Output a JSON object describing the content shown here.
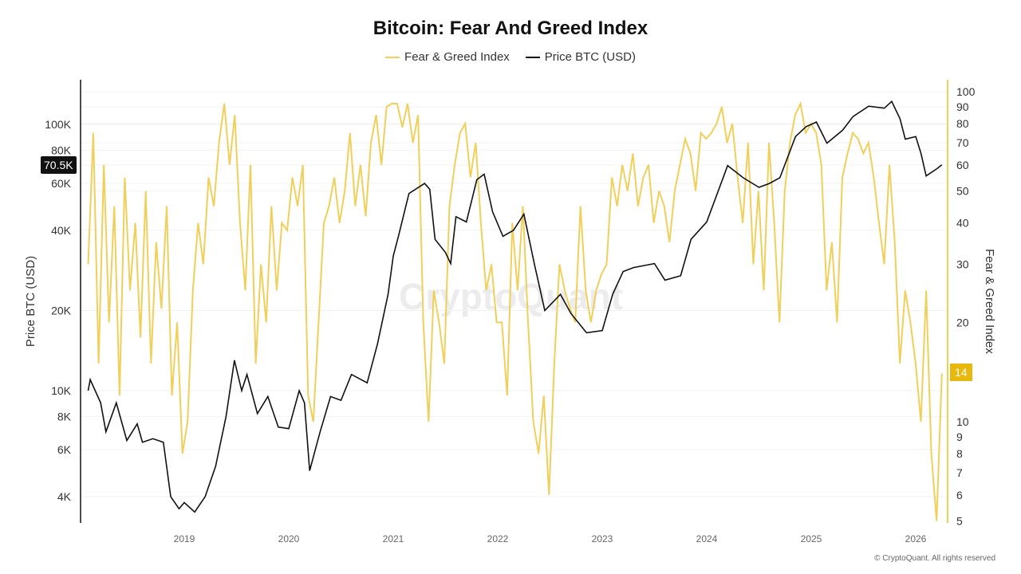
{
  "chart_data": {
    "type": "line",
    "title": "Bitcoin: Fear And Greed Index",
    "legend": [
      "Fear & Greed Index",
      "Price BTC (USD)"
    ],
    "legend_position": "top-center",
    "ylabel_left": "Price BTC (USD)",
    "ylabel_right": "Fear & Greed Index",
    "y_left_scale": "log",
    "y_left_range": [
      3500,
      180000
    ],
    "y_right_scale": "log",
    "y_right_range": [
      5,
      115
    ],
    "x_range": [
      2018.0,
      2026.3
    ],
    "x_ticks": [
      "2019",
      "2020",
      "2021",
      "2022",
      "2023",
      "2024",
      "2025",
      "2026"
    ],
    "y_left_ticks": [
      {
        "v": 4000,
        "l": "4K"
      },
      {
        "v": 6000,
        "l": "6K"
      },
      {
        "v": 8000,
        "l": "8K"
      },
      {
        "v": 10000,
        "l": "10K"
      },
      {
        "v": 20000,
        "l": "20K"
      },
      {
        "v": 40000,
        "l": "40K"
      },
      {
        "v": 60000,
        "l": "60K"
      },
      {
        "v": 80000,
        "l": "80K"
      },
      {
        "v": 100000,
        "l": "100K"
      }
    ],
    "y_right_ticks": [
      5,
      6,
      7,
      8,
      9,
      10,
      20,
      30,
      40,
      50,
      60,
      70,
      80,
      90,
      100
    ],
    "current_price_label": "70.5K",
    "current_index_label": "14",
    "colors": {
      "fg": "#f0cf5a",
      "price": "#111111",
      "badge_price": "#111111",
      "badge_fg": "#e8b90c"
    },
    "price_series": {
      "name": "Price BTC (USD)",
      "x": [
        2018.08,
        2018.1,
        2018.2,
        2018.25,
        2018.35,
        2018.45,
        2018.55,
        2018.6,
        2018.7,
        2018.8,
        2018.87,
        2018.95,
        2019.0,
        2019.1,
        2019.2,
        2019.3,
        2019.4,
        2019.48,
        2019.55,
        2019.6,
        2019.7,
        2019.8,
        2019.9,
        2020.0,
        2020.1,
        2020.15,
        2020.2,
        2020.3,
        2020.4,
        2020.5,
        2020.6,
        2020.75,
        2020.85,
        2020.95,
        2021.0,
        2021.05,
        2021.15,
        2021.3,
        2021.35,
        2021.4,
        2021.5,
        2021.55,
        2021.6,
        2021.7,
        2021.8,
        2021.87,
        2021.95,
        2022.05,
        2022.15,
        2022.25,
        2022.35,
        2022.45,
        2022.6,
        2022.7,
        2022.85,
        2023.0,
        2023.1,
        2023.2,
        2023.3,
        2023.5,
        2023.6,
        2023.75,
        2023.85,
        2024.0,
        2024.15,
        2024.2,
        2024.35,
        2024.5,
        2024.6,
        2024.7,
        2024.85,
        2024.95,
        2025.05,
        2025.15,
        2025.3,
        2025.4,
        2025.55,
        2025.7,
        2025.77,
        2025.85,
        2025.9,
        2026.0,
        2026.05,
        2026.1,
        2026.2,
        2026.25
      ],
      "y": [
        10000,
        11000,
        9000,
        7000,
        9000,
        6500,
        7500,
        6400,
        6600,
        6400,
        4000,
        3600,
        3800,
        3500,
        4000,
        5200,
        8000,
        13000,
        10000,
        11500,
        8200,
        9500,
        7300,
        7200,
        10000,
        9000,
        5000,
        7000,
        9500,
        9200,
        11500,
        10700,
        15000,
        23000,
        32000,
        38000,
        55000,
        60000,
        57000,
        37000,
        33000,
        30000,
        45000,
        43000,
        62000,
        65000,
        47000,
        38000,
        40000,
        46000,
        30000,
        20000,
        23000,
        19500,
        16500,
        16800,
        23000,
        28000,
        29000,
        30000,
        26000,
        27000,
        37000,
        43000,
        62000,
        70000,
        63000,
        58000,
        60000,
        63000,
        90000,
        98000,
        102000,
        85000,
        95000,
        107000,
        117000,
        115000,
        122000,
        105000,
        88000,
        90000,
        78000,
        64000,
        68000,
        70500
      ]
    },
    "fg_series": {
      "name": "Fear & Greed Index",
      "x_start": 2018.08,
      "x_end": 2026.25,
      "y": [
        30,
        75,
        15,
        60,
        20,
        45,
        12,
        55,
        25,
        40,
        18,
        50,
        15,
        35,
        22,
        45,
        12,
        20,
        8,
        10,
        25,
        40,
        30,
        55,
        45,
        70,
        92,
        60,
        85,
        40,
        25,
        60,
        15,
        30,
        20,
        45,
        25,
        40,
        38,
        55,
        45,
        60,
        12,
        10,
        20,
        40,
        45,
        55,
        40,
        50,
        75,
        45,
        60,
        42,
        70,
        85,
        60,
        90,
        92,
        92,
        78,
        92,
        70,
        85,
        20,
        10,
        25,
        20,
        15,
        45,
        60,
        75,
        80,
        55,
        70,
        40,
        25,
        30,
        20,
        20,
        12,
        40,
        25,
        45,
        20,
        10,
        8,
        12,
        6,
        15,
        30,
        25,
        22,
        20,
        45,
        25,
        20,
        25,
        28,
        30,
        55,
        45,
        60,
        50,
        65,
        45,
        55,
        60,
        40,
        50,
        45,
        35,
        50,
        60,
        72,
        65,
        50,
        75,
        72,
        75,
        80,
        90,
        70,
        80,
        55,
        40,
        70,
        30,
        50,
        25,
        70,
        40,
        20,
        50,
        70,
        85,
        92,
        75,
        80,
        75,
        60,
        25,
        35,
        20,
        55,
        65,
        75,
        72,
        65,
        70,
        55,
        40,
        30,
        60,
        35,
        15,
        25,
        20,
        15,
        10,
        25,
        8,
        5,
        14
      ]
    }
  },
  "watermark": "CryptoQuant",
  "footer": "© CryptoQuant. All rights reserved"
}
